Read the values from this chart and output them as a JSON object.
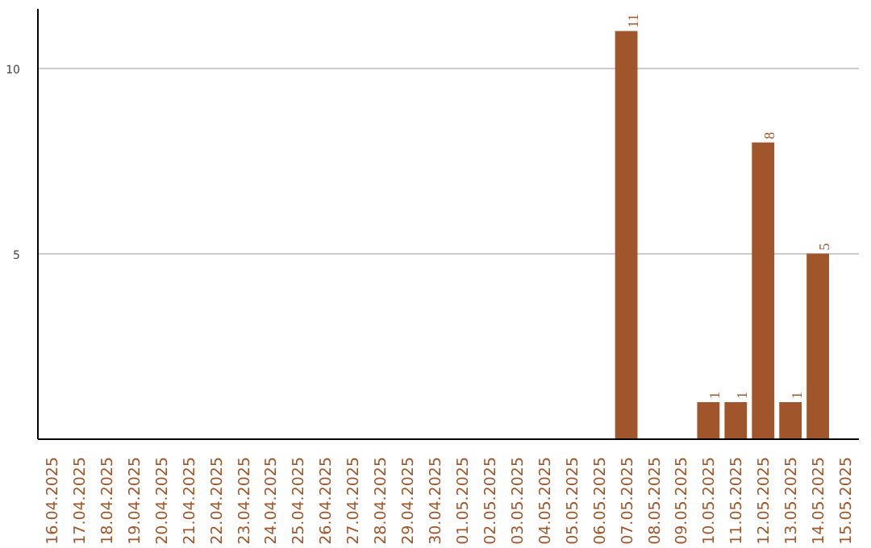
{
  "chart_data": {
    "type": "bar",
    "categories": [
      "16.04.2025",
      "17.04.2025",
      "18.04.2025",
      "19.04.2025",
      "20.04.2025",
      "21.04.2025",
      "22.04.2025",
      "23.04.2025",
      "24.04.2025",
      "25.04.2025",
      "26.04.2025",
      "27.04.2025",
      "28.04.2025",
      "29.04.2025",
      "30.04.2025",
      "01.05.2025",
      "02.05.2025",
      "03.05.2025",
      "04.05.2025",
      "05.05.2025",
      "06.05.2025",
      "07.05.2025",
      "08.05.2025",
      "09.05.2025",
      "10.05.2025",
      "11.05.2025",
      "12.05.2025",
      "13.05.2025",
      "14.05.2025",
      "15.05.2025"
    ],
    "values": [
      0,
      0,
      0,
      0,
      0,
      0,
      0,
      0,
      0,
      0,
      0,
      0,
      0,
      0,
      0,
      0,
      0,
      0,
      0,
      0,
      0,
      11,
      0,
      0,
      1,
      1,
      8,
      1,
      5,
      0
    ],
    "value_labels": [
      null,
      null,
      null,
      null,
      null,
      null,
      null,
      null,
      null,
      null,
      null,
      null,
      null,
      null,
      null,
      null,
      null,
      null,
      null,
      null,
      null,
      "11",
      null,
      null,
      "1",
      "1",
      "8",
      "1",
      "5",
      null
    ],
    "color": "#a0562a",
    "ylim": [
      0,
      11.6
    ],
    "yticks": [
      5,
      10
    ],
    "grid": "y"
  }
}
